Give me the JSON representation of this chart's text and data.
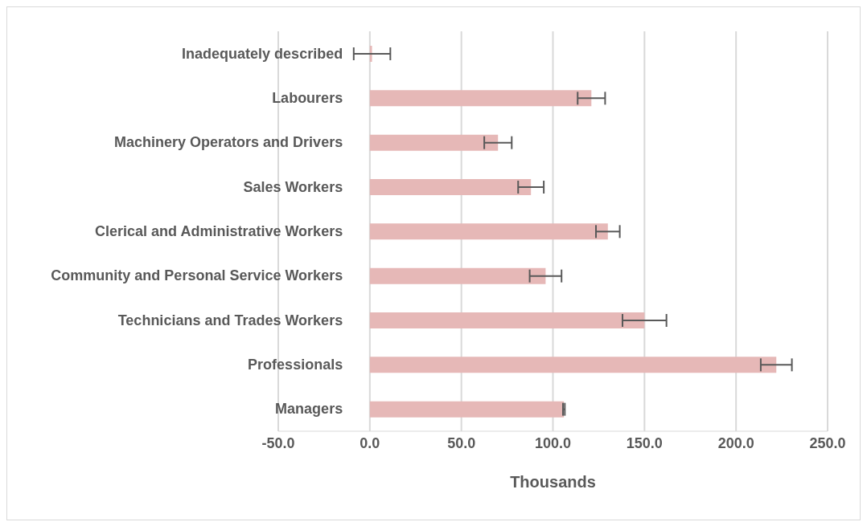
{
  "chart_data": {
    "type": "bar",
    "orientation": "horizontal",
    "xlabel": "Thousands",
    "categories": [
      "Inadequately described",
      "Labourers",
      "Machinery Operators and Drivers",
      "Sales Workers",
      "Clerical and Administrative Workers",
      "Community and Personal Service Workers",
      "Technicians and Trades Workers",
      "Professionals",
      "Managers"
    ],
    "values": [
      1.2,
      121,
      70,
      88,
      130,
      96,
      150,
      222,
      106
    ],
    "errors": [
      10,
      7.5,
      7.5,
      7,
      6.5,
      8.7,
      12,
      8.5,
      0.5
    ],
    "color": "#e6b8b7",
    "xlim": [
      -50,
      250
    ],
    "xticks": [
      {
        "value": -50,
        "label": "-50.0"
      },
      {
        "value": 0,
        "label": "0.0"
      },
      {
        "value": 50,
        "label": "50.0"
      },
      {
        "value": 100,
        "label": "100.0"
      },
      {
        "value": 150,
        "label": "150.0"
      },
      {
        "value": 200,
        "label": "200.0"
      },
      {
        "value": 250,
        "label": "250.0"
      }
    ],
    "grid": "x",
    "legend": false
  }
}
